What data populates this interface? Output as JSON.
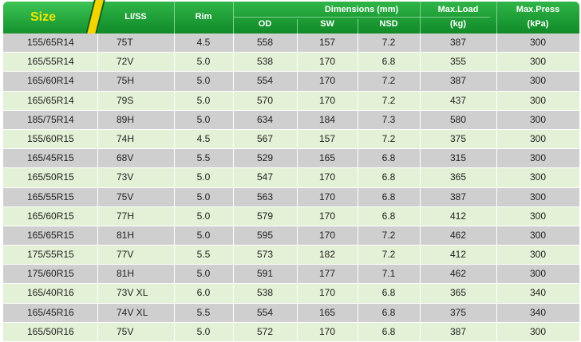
{
  "header": {
    "size": "Size",
    "li_ss": "LI/SS",
    "rim": "Rim",
    "dimensions": "Dimensions (mm)",
    "od": "OD",
    "sw": "SW",
    "nsd": "NSD",
    "max_load": "Max.Load",
    "max_load_unit": "(kg)",
    "max_press": "Max.Press",
    "max_press_unit": "(kPa)"
  },
  "rows": [
    {
      "size": "155/65R14",
      "li": "75T",
      "rim": "4.5",
      "od": "558",
      "sw": "157",
      "nsd": "7.2",
      "load": "387",
      "press": "300"
    },
    {
      "size": "165/55R14",
      "li": "72V",
      "rim": "5.0",
      "od": "538",
      "sw": "170",
      "nsd": "6.8",
      "load": "355",
      "press": "300"
    },
    {
      "size": "165/60R14",
      "li": "75H",
      "rim": "5.0",
      "od": "554",
      "sw": "170",
      "nsd": "7.2",
      "load": "387",
      "press": "300"
    },
    {
      "size": "165/65R14",
      "li": "79S",
      "rim": "5.0",
      "od": "570",
      "sw": "170",
      "nsd": "7.2",
      "load": "437",
      "press": "300"
    },
    {
      "size": "185/75R14",
      "li": "89H",
      "rim": "5.0",
      "od": "634",
      "sw": "184",
      "nsd": "7.3",
      "load": "580",
      "press": "300"
    },
    {
      "size": "155/60R15",
      "li": "74H",
      "rim": "4.5",
      "od": "567",
      "sw": "157",
      "nsd": "7.2",
      "load": "375",
      "press": "300"
    },
    {
      "size": "165/45R15",
      "li": "68V",
      "rim": "5.5",
      "od": "529",
      "sw": "165",
      "nsd": "6.8",
      "load": "315",
      "press": "300"
    },
    {
      "size": "165/50R15",
      "li": "73V",
      "rim": "5.0",
      "od": "547",
      "sw": "170",
      "nsd": "6.8",
      "load": "365",
      "press": "300"
    },
    {
      "size": "165/55R15",
      "li": "75V",
      "rim": "5.0",
      "od": "563",
      "sw": "170",
      "nsd": "6.8",
      "load": "387",
      "press": "300"
    },
    {
      "size": "165/60R15",
      "li": "77H",
      "rim": "5.0",
      "od": "579",
      "sw": "170",
      "nsd": "6.8",
      "load": "412",
      "press": "300"
    },
    {
      "size": "165/65R15",
      "li": "81H",
      "rim": "5.0",
      "od": "595",
      "sw": "170",
      "nsd": "7.2",
      "load": "462",
      "press": "300"
    },
    {
      "size": "175/55R15",
      "li": "77V",
      "rim": "5.5",
      "od": "573",
      "sw": "182",
      "nsd": "7.2",
      "load": "412",
      "press": "300"
    },
    {
      "size": "175/60R15",
      "li": "81H",
      "rim": "5.0",
      "od": "591",
      "sw": "177",
      "nsd": "7.1",
      "load": "462",
      "press": "300"
    },
    {
      "size": "165/40R16",
      "li": "73V XL",
      "rim": "6.0",
      "od": "538",
      "sw": "170",
      "nsd": "6.8",
      "load": "365",
      "press": "340"
    },
    {
      "size": "165/45R16",
      "li": "74V XL",
      "rim": "5.5",
      "od": "554",
      "sw": "165",
      "nsd": "6.8",
      "load": "375",
      "press": "340"
    },
    {
      "size": "165/50R16",
      "li": "75V",
      "rim": "5.0",
      "od": "572",
      "sw": "170",
      "nsd": "6.8",
      "load": "387",
      "press": "300"
    }
  ],
  "colors": {
    "header_green": "#1a9a33",
    "size_label": "#f2e600",
    "stripe_yellow": "#f2d400",
    "row_gray": "#cfcfcf",
    "row_light_green": "#e3f1d6"
  }
}
